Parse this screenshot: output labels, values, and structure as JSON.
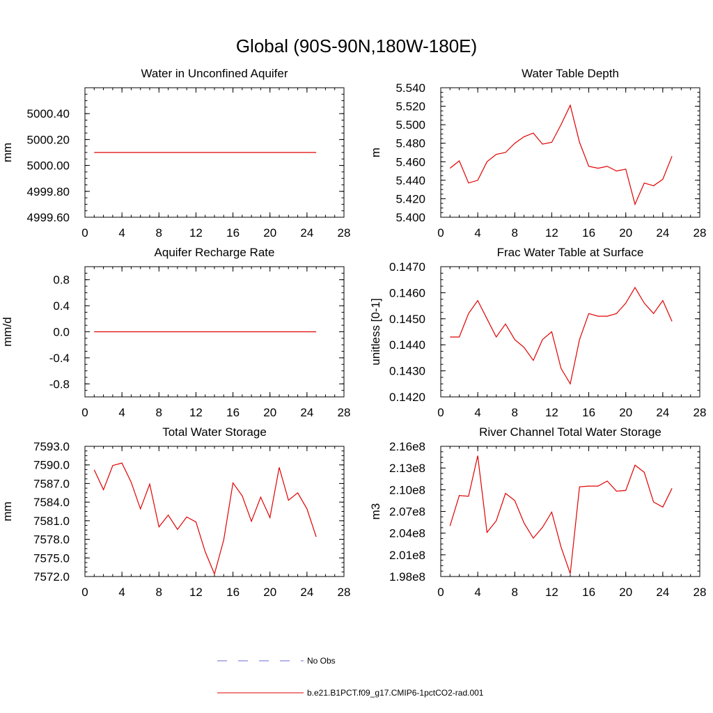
{
  "figure": {
    "title": "Global (90S-90N,180W-180E)",
    "legend": [
      {
        "label": "No Obs",
        "color": "#6a6ad0",
        "style": "dashed"
      },
      {
        "label": "b.e21.B1PCT.f09_g17.CMIP6-1pctCO2-rad.001",
        "color": "#e00000",
        "style": "solid"
      }
    ]
  },
  "chart_data": [
    {
      "type": "line",
      "title": "Water in Unconfined Aquifer",
      "xlabel": "",
      "ylabel": "mm",
      "xlim": [
        0,
        28
      ],
      "xticks": [
        0,
        4,
        8,
        12,
        16,
        20,
        24,
        28
      ],
      "ylim": [
        4999.6,
        5000.6
      ],
      "yticks": [
        4999.6,
        4999.8,
        5000.0,
        5000.2,
        5000.4
      ],
      "ytick_labels": [
        "4999.60",
        "4999.80",
        "5000.00",
        "5000.20",
        "5000.40"
      ],
      "x": [
        1,
        2,
        3,
        4,
        5,
        6,
        7,
        8,
        9,
        10,
        11,
        12,
        13,
        14,
        15,
        16,
        17,
        18,
        19,
        20,
        21,
        22,
        23,
        24,
        25
      ],
      "series": [
        {
          "color": "#e00000",
          "values": [
            5000.1,
            5000.1,
            5000.1,
            5000.1,
            5000.1,
            5000.1,
            5000.1,
            5000.1,
            5000.1,
            5000.1,
            5000.1,
            5000.1,
            5000.1,
            5000.1,
            5000.1,
            5000.1,
            5000.1,
            5000.1,
            5000.1,
            5000.1,
            5000.1,
            5000.1,
            5000.1,
            5000.1,
            5000.1
          ]
        }
      ]
    },
    {
      "type": "line",
      "title": "Water Table Depth",
      "xlabel": "",
      "ylabel": "m",
      "xlim": [
        0,
        28
      ],
      "xticks": [
        0,
        4,
        8,
        12,
        16,
        20,
        24,
        28
      ],
      "ylim": [
        5.4,
        5.54
      ],
      "yticks": [
        5.4,
        5.42,
        5.44,
        5.46,
        5.48,
        5.5,
        5.52,
        5.54
      ],
      "ytick_labels": [
        "5.400",
        "5.420",
        "5.440",
        "5.460",
        "5.480",
        "5.500",
        "5.520",
        "5.540"
      ],
      "x": [
        1,
        2,
        3,
        4,
        5,
        6,
        7,
        8,
        9,
        10,
        11,
        12,
        13,
        14,
        15,
        16,
        17,
        18,
        19,
        20,
        21,
        22,
        23,
        24,
        25
      ],
      "series": [
        {
          "color": "#e00000",
          "values": [
            5.453,
            5.461,
            5.437,
            5.44,
            5.46,
            5.468,
            5.47,
            5.48,
            5.487,
            5.491,
            5.479,
            5.481,
            5.5,
            5.521,
            5.481,
            5.455,
            5.453,
            5.455,
            5.45,
            5.452,
            5.414,
            5.437,
            5.434,
            5.441,
            5.466
          ]
        }
      ]
    },
    {
      "type": "line",
      "title": "Aquifer Recharge Rate",
      "xlabel": "",
      "ylabel": "mm/d",
      "xlim": [
        0,
        28
      ],
      "xticks": [
        0,
        4,
        8,
        12,
        16,
        20,
        24,
        28
      ],
      "ylim": [
        -1.0,
        1.0
      ],
      "yticks": [
        -0.8,
        -0.4,
        0.0,
        0.4,
        0.8
      ],
      "ytick_labels": [
        "-0.8",
        "-0.4",
        "0.0",
        "0.4",
        "0.8"
      ],
      "x": [
        1,
        2,
        3,
        4,
        5,
        6,
        7,
        8,
        9,
        10,
        11,
        12,
        13,
        14,
        15,
        16,
        17,
        18,
        19,
        20,
        21,
        22,
        23,
        24,
        25
      ],
      "series": [
        {
          "color": "#e00000",
          "values": [
            0,
            0,
            0,
            0,
            0,
            0,
            0,
            0,
            0,
            0,
            0,
            0,
            0,
            0,
            0,
            0,
            0,
            0,
            0,
            0,
            0,
            0,
            0,
            0,
            0
          ]
        }
      ]
    },
    {
      "type": "line",
      "title": "Frac Water Table at Surface",
      "xlabel": "",
      "ylabel": "unitless [0-1]",
      "xlim": [
        0,
        28
      ],
      "xticks": [
        0,
        4,
        8,
        12,
        16,
        20,
        24,
        28
      ],
      "ylim": [
        0.142,
        0.147
      ],
      "yticks": [
        0.142,
        0.143,
        0.144,
        0.145,
        0.146,
        0.147
      ],
      "ytick_labels": [
        "0.1420",
        "0.1430",
        "0.1440",
        "0.1450",
        "0.1460",
        "0.1470"
      ],
      "x": [
        1,
        2,
        3,
        4,
        5,
        6,
        7,
        8,
        9,
        10,
        11,
        12,
        13,
        14,
        15,
        16,
        17,
        18,
        19,
        20,
        21,
        22,
        23,
        24,
        25
      ],
      "series": [
        {
          "color": "#e00000",
          "values": [
            0.1443,
            0.1443,
            0.1452,
            0.1457,
            0.145,
            0.1443,
            0.1448,
            0.1442,
            0.1439,
            0.1434,
            0.1442,
            0.1445,
            0.1431,
            0.1425,
            0.1442,
            0.1452,
            0.1451,
            0.1451,
            0.1452,
            0.1456,
            0.1462,
            0.1456,
            0.1452,
            0.1457,
            0.1449
          ]
        }
      ]
    },
    {
      "type": "line",
      "title": "Total Water Storage",
      "xlabel": "",
      "ylabel": "mm",
      "xlim": [
        0,
        28
      ],
      "xticks": [
        0,
        4,
        8,
        12,
        16,
        20,
        24,
        28
      ],
      "ylim": [
        7572,
        7593
      ],
      "yticks": [
        7572,
        7575,
        7578,
        7581,
        7584,
        7587,
        7590,
        7593
      ],
      "ytick_labels": [
        "7572.0",
        "7575.0",
        "7578.0",
        "7581.0",
        "7584.0",
        "7587.0",
        "7590.0",
        "7593.0"
      ],
      "x": [
        1,
        2,
        3,
        4,
        5,
        6,
        7,
        8,
        9,
        10,
        11,
        12,
        13,
        14,
        15,
        16,
        17,
        18,
        19,
        20,
        21,
        22,
        23,
        24,
        25
      ],
      "series": [
        {
          "color": "#e00000",
          "values": [
            7589.2,
            7586.0,
            7589.9,
            7590.3,
            7587.2,
            7582.9,
            7586.9,
            7580.0,
            7581.9,
            7579.6,
            7581.6,
            7580.8,
            7576.0,
            7572.4,
            7577.9,
            7587.1,
            7585.0,
            7580.9,
            7584.8,
            7581.5,
            7589.6,
            7584.3,
            7585.5,
            7582.9,
            7578.4
          ]
        }
      ]
    },
    {
      "type": "line",
      "title": "River Channel Total Water Storage",
      "xlabel": "",
      "ylabel": "m3",
      "xlim": [
        0,
        28
      ],
      "xticks": [
        0,
        4,
        8,
        12,
        16,
        20,
        24,
        28
      ],
      "ylim": [
        198000000,
        216000000
      ],
      "yticks": [
        198000000,
        201000000,
        204000000,
        207000000,
        210000000,
        213000000,
        216000000
      ],
      "ytick_labels": [
        "1.98e8",
        "2.01e8",
        "2.04e8",
        "2.07e8",
        "2.10e8",
        "2.13e8",
        "2.16e8"
      ],
      "x": [
        1,
        2,
        3,
        4,
        5,
        6,
        7,
        8,
        9,
        10,
        11,
        12,
        13,
        14,
        15,
        16,
        17,
        18,
        19,
        20,
        21,
        22,
        23,
        24,
        25
      ],
      "series": [
        {
          "color": "#e00000",
          "values": [
            205000000,
            209200000,
            209100000,
            214700000,
            204100000,
            205700000,
            209500000,
            208500000,
            205400000,
            203300000,
            204800000,
            206900000,
            202100000,
            198400000,
            210400000,
            210500000,
            210500000,
            211200000,
            209800000,
            209900000,
            213400000,
            212400000,
            208300000,
            207600000,
            210200000
          ]
        }
      ]
    }
  ]
}
